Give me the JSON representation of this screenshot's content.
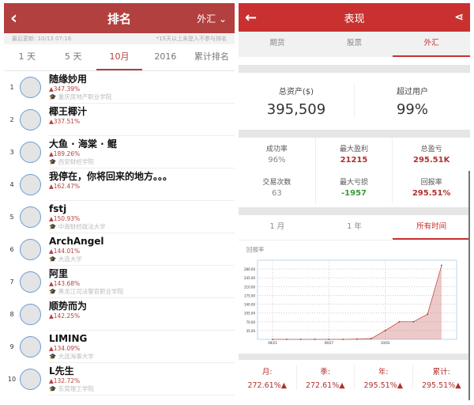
{
  "left": {
    "back_icon": "chevron-left-icon",
    "title": "排名",
    "market": "外汇",
    "last_update": "最后更新: 10/13 07:16",
    "note": "*15天以上未登入不参与排名",
    "tabs": [
      "1 天",
      "5 天",
      "10月",
      "2016",
      "累计排名"
    ],
    "active_tab": 2,
    "rows": [
      {
        "rank": "1",
        "name": "随缘妙用",
        "pct": "▲347.39%",
        "school": "重庆房地产职业学院"
      },
      {
        "rank": "2",
        "name": "椰王椰汁",
        "pct": "▲337.51%",
        "school": ""
      },
      {
        "rank": "3",
        "name": "大鱼 · 海棠 · 鲲",
        "pct": "▲189.26%",
        "school": "西安财经学院"
      },
      {
        "rank": "4",
        "name": "我停在，你将回来的地方。。。",
        "pct": "▲162.47%",
        "school": ""
      },
      {
        "rank": "5",
        "name": "fstj",
        "pct": "▲150.93%",
        "school": "中南财经政法大学"
      },
      {
        "rank": "6",
        "name": "ArchAngel",
        "pct": "▲144.01%",
        "school": "大连大学"
      },
      {
        "rank": "7",
        "name": "阿里",
        "pct": "▲143.68%",
        "school": "黑龙江司法警官职业学院"
      },
      {
        "rank": "8",
        "name": "顺势而为",
        "pct": "▲142.25%",
        "school": ""
      },
      {
        "rank": "9",
        "name": "LIMING",
        "pct": "▲134.09%",
        "school": "大连海事大学"
      },
      {
        "rank": "10",
        "name": "L先生",
        "pct": "▲132.72%",
        "school": "东莞理工学院"
      }
    ]
  },
  "right": {
    "title": "表现",
    "tabs": [
      "期货",
      "股票",
      "外汇"
    ],
    "active_tab": 2,
    "assets_label": "总资产($)",
    "assets_value": "395,509",
    "beat_label": "超过用户",
    "beat_value": "99%",
    "stats": [
      {
        "label": "成功率",
        "value": "96%",
        "color": "#888888"
      },
      {
        "label": "最大盈利",
        "value": "21215",
        "color": "#b2302e"
      },
      {
        "label": "总盈亏",
        "value": "295.51K",
        "color": "#b2302e"
      },
      {
        "label": "交易次数",
        "value": "63",
        "color": "#888888"
      },
      {
        "label": "最大亏损",
        "value": "-1957",
        "color": "#3a9a3a"
      },
      {
        "label": "回报率",
        "value": "295.51%",
        "color": "#b2302e"
      }
    ],
    "period_tabs": [
      "1 月",
      "1 年",
      "所有时间"
    ],
    "active_period": 2,
    "chart_label": "回报率",
    "returns": [
      {
        "label": "月:",
        "value": "272.61%▲"
      },
      {
        "label": "季:",
        "value": "272.61%▲"
      },
      {
        "label": "年:",
        "value": "295.51%▲"
      },
      {
        "label": "累计:",
        "value": "295.51%▲"
      }
    ]
  },
  "chart_data": {
    "type": "area",
    "x": [
      "09/21",
      "",
      "",
      "",
      "09/27",
      "",
      "",
      "",
      "10/03",
      "",
      "",
      "",
      ""
    ],
    "values": [
      0,
      0,
      0,
      0,
      0,
      0,
      1,
      3,
      35,
      70,
      70,
      100,
      295
    ],
    "yticks": [
      35,
      70,
      105,
      140,
      175,
      210,
      245,
      280
    ],
    "ylim": [
      0,
      315
    ],
    "grid": true,
    "color": "#c0504d"
  }
}
